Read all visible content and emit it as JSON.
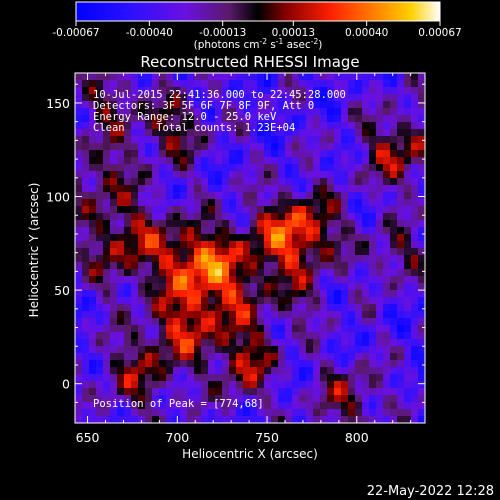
{
  "chart_data": {
    "type": "heatmap",
    "colorbar": {
      "ticks": [
        "-0.00067",
        "-0.00040",
        "-0.00013",
        "0.00013",
        "0.00040",
        "0.00067"
      ],
      "tick_values": [
        -0.00067,
        -0.0004,
        -0.00013,
        0.00013,
        0.0004,
        0.00067
      ],
      "range": [
        -0.00067,
        0.00067
      ],
      "units_prefix": "(photons cm",
      "units_sup1": "-2",
      "units_mid1": " s",
      "units_sup2": "-1",
      "units_mid2": " asec",
      "units_sup3": "-2",
      "units_suffix": ")"
    },
    "title": "Reconstructed RHESSI Image",
    "xlabel": "Heliocentric X (arcsec)",
    "ylabel": "Heliocentric Y (arcsec)",
    "xlim": [
      643,
      838
    ],
    "ylim": [
      -21,
      166
    ],
    "x_ticks": [
      650,
      700,
      750,
      800
    ],
    "y_ticks": [
      0,
      50,
      100,
      150
    ],
    "annotations": {
      "time_range": "10-Jul-2015 22:41:36.000 to 22:45:28.000",
      "detectors": "Detectors: 3F 5F 6F 7F 8F 9F, Att 0",
      "energy_range": "Energy Range: 12.0 - 25.0 keV",
      "method_counts": "Clean     Total counts: 1.23E+04",
      "peak_position": "Position of Peak = [774,68]"
    },
    "peak": [
      774,
      68
    ],
    "colormap": "RHESSI red-temperature (blue/purple negative, red-yellow-white positive)"
  },
  "footer": {
    "timestamp": "22-May-2022 12:28"
  }
}
